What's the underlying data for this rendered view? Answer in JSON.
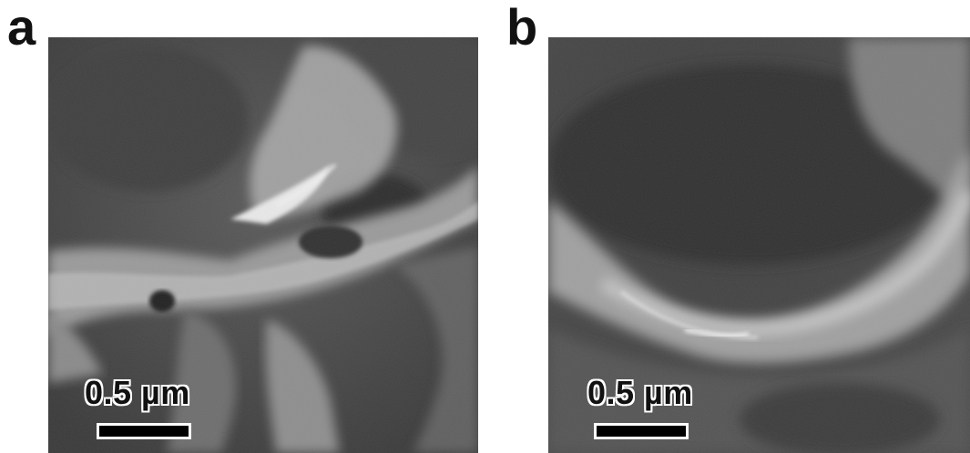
{
  "panels": [
    {
      "label": "a",
      "scale_bar_text": "0.5 µm"
    },
    {
      "label": "b",
      "scale_bar_text": "0.5 µm"
    }
  ],
  "colors": {
    "background": "#ffffff",
    "sem_base": "#4a4a4a",
    "sem_highlight": "#d8d8d8",
    "scale_bar": "#000000",
    "label_text": "#111111"
  }
}
